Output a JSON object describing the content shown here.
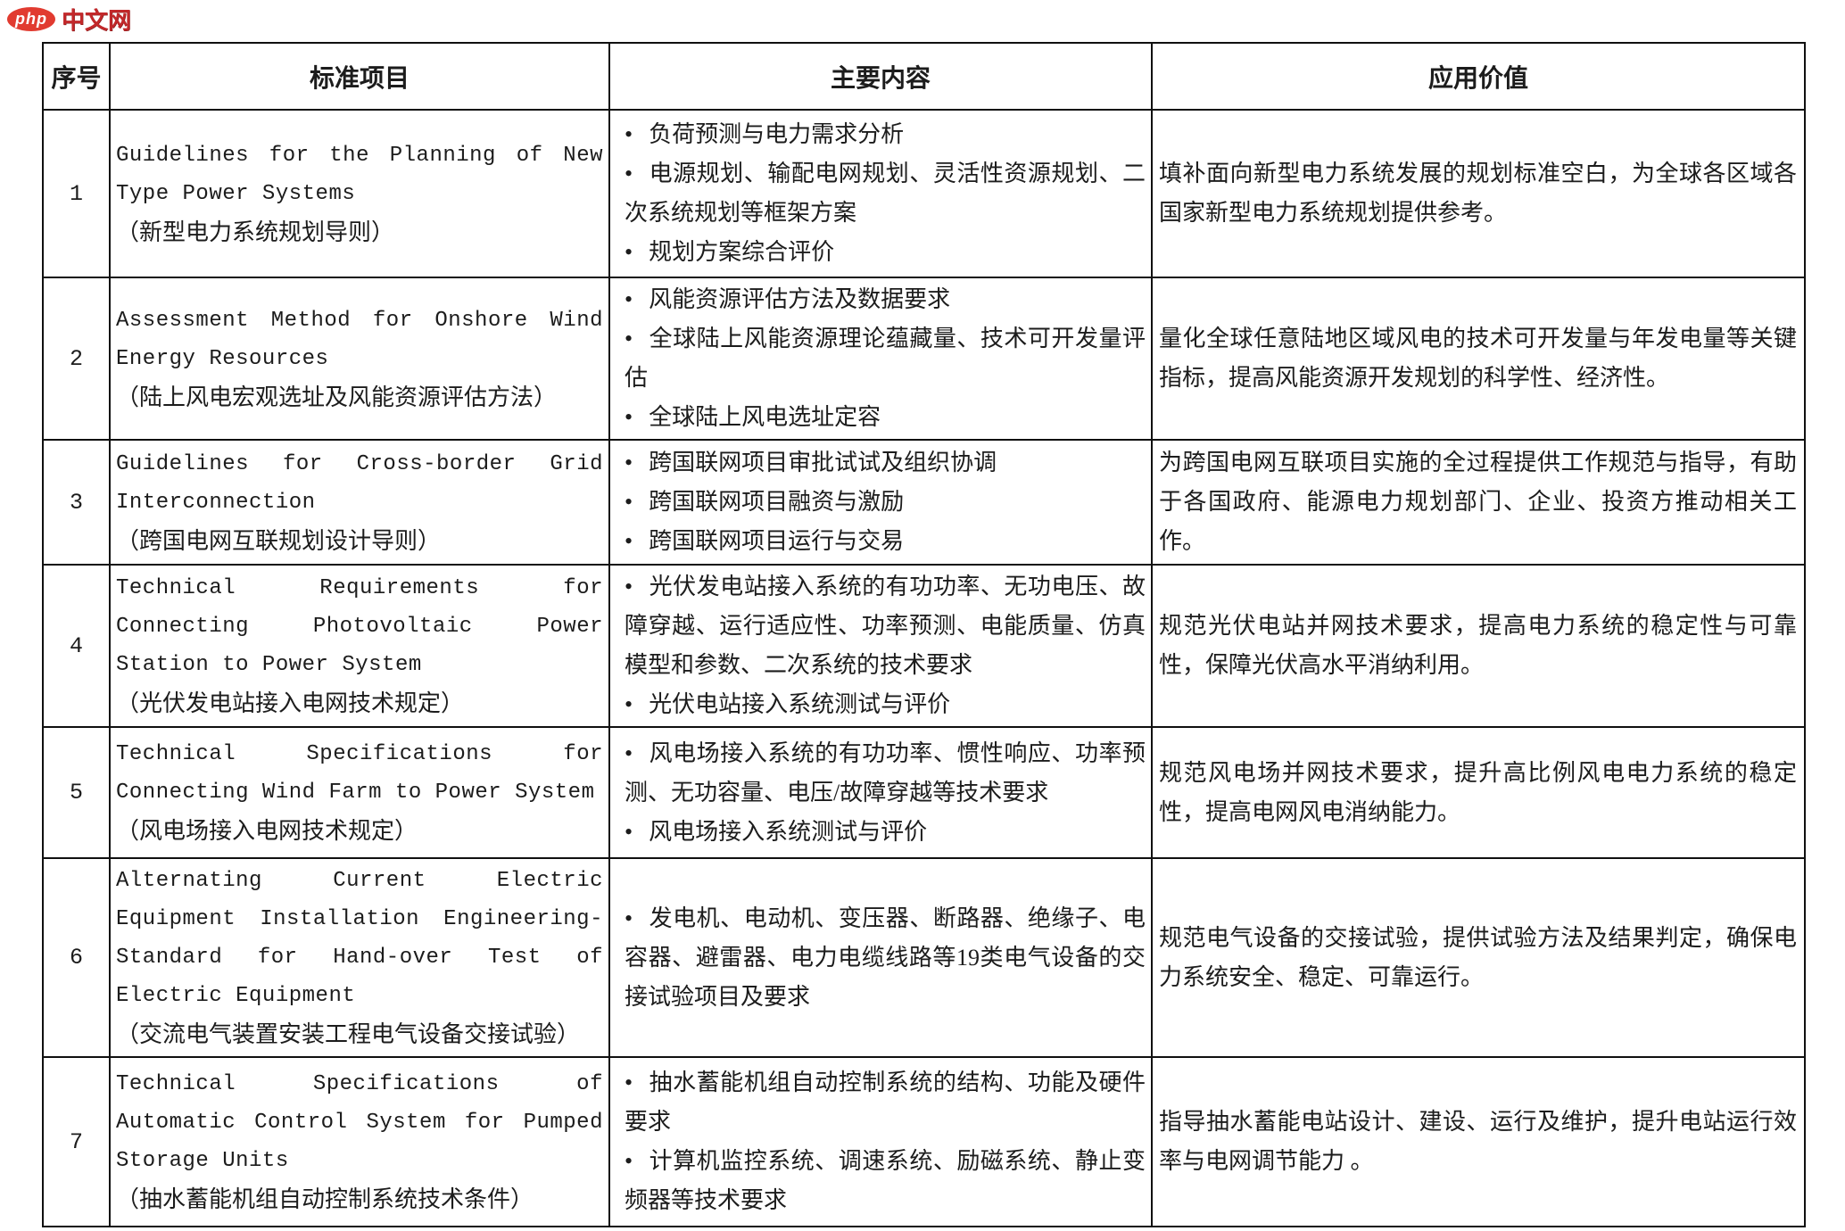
{
  "logo": {
    "badge": "php",
    "text": "中文网"
  },
  "bullet": "•",
  "table": {
    "headers": [
      "序号",
      "标准项目",
      "主要内容",
      "应用价值"
    ],
    "rows": [
      {
        "no": "1",
        "name_en": "Guidelines for the Planning of New Type Power Systems",
        "name_zh": "（新型电力系统规划导则）",
        "contents": [
          "负荷预测与电力需求分析",
          "电源规划、输配电网规划、灵活性资源规划、二次系统规划等框架方案",
          "规划方案综合评价"
        ],
        "value": "填补面向新型电力系统发展的规划标准空白，为全球各区域各国家新型电力系统规划提供参考。"
      },
      {
        "no": "2",
        "name_en": "Assessment Method for Onshore Wind Energy Resources",
        "name_zh": "（陆上风电宏观选址及风能资源评估方法）",
        "contents": [
          "风能资源评估方法及数据要求",
          "全球陆上风能资源理论蕴藏量、技术可开发量评估",
          "全球陆上风电选址定容"
        ],
        "value": "量化全球任意陆地区域风电的技术可开发量与年发电量等关键指标，提高风能资源开发规划的科学性、经济性。"
      },
      {
        "no": "3",
        "name_en": "Guidelines for Cross-border Grid Interconnection",
        "name_zh": "（跨国电网互联规划设计导则）",
        "contents": [
          "跨国联网项目审批试试及组织协调",
          "跨国联网项目融资与激励",
          "跨国联网项目运行与交易"
        ],
        "value": "为跨国电网互联项目实施的全过程提供工作规范与指导，有助于各国政府、能源电力规划部门、企业、投资方推动相关工作。"
      },
      {
        "no": "4",
        "name_en": "Technical Requirements for Connecting Photovoltaic Power Station to Power System",
        "name_zh": "（光伏发电站接入电网技术规定）",
        "contents": [
          "光伏发电站接入系统的有功功率、无功电压、故障穿越、运行适应性、功率预测、电能质量、仿真模型和参数、二次系统的技术要求",
          "光伏电站接入系统测试与评价"
        ],
        "value": "规范光伏电站并网技术要求，提高电力系统的稳定性与可靠性，保障光伏高水平消纳利用。"
      },
      {
        "no": "5",
        "name_en": "Technical Specifications for Connecting Wind Farm to Power System",
        "name_zh": "（风电场接入电网技术规定）",
        "contents": [
          "风电场接入系统的有功功率、惯性响应、功率预测、无功容量、电压/故障穿越等技术要求",
          "风电场接入系统测试与评价"
        ],
        "value": "规范风电场并网技术要求，提升高比例风电电力系统的稳定性，提高电网风电消纳能力。"
      },
      {
        "no": "6",
        "name_en": "Alternating Current Electric Equipment Installation Engineering-Standard for Hand-over Test of Electric Equipment",
        "name_zh": "（交流电气装置安装工程电气设备交接试验）",
        "contents": [
          "发电机、电动机、变压器、断路器、绝缘子、电容器、避雷器、电力电缆线路等19类电气设备的交接试验项目及要求"
        ],
        "value": "规范电气设备的交接试验，提供试验方法及结果判定，确保电力系统安全、稳定、可靠运行。"
      },
      {
        "no": "7",
        "name_en": "Technical Specifications of Automatic Control System for Pumped Storage Units",
        "name_zh": "（抽水蓄能机组自动控制系统技术条件）",
        "contents": [
          "抽水蓄能机组自动控制系统的结构、功能及硬件要求",
          "计算机监控系统、调速系统、励磁系统、静止变频器等技术要求"
        ],
        "value": "指导抽水蓄能电站设计、建设、运行及维护，提升电站运行效率与电网调节能力 。"
      }
    ]
  }
}
